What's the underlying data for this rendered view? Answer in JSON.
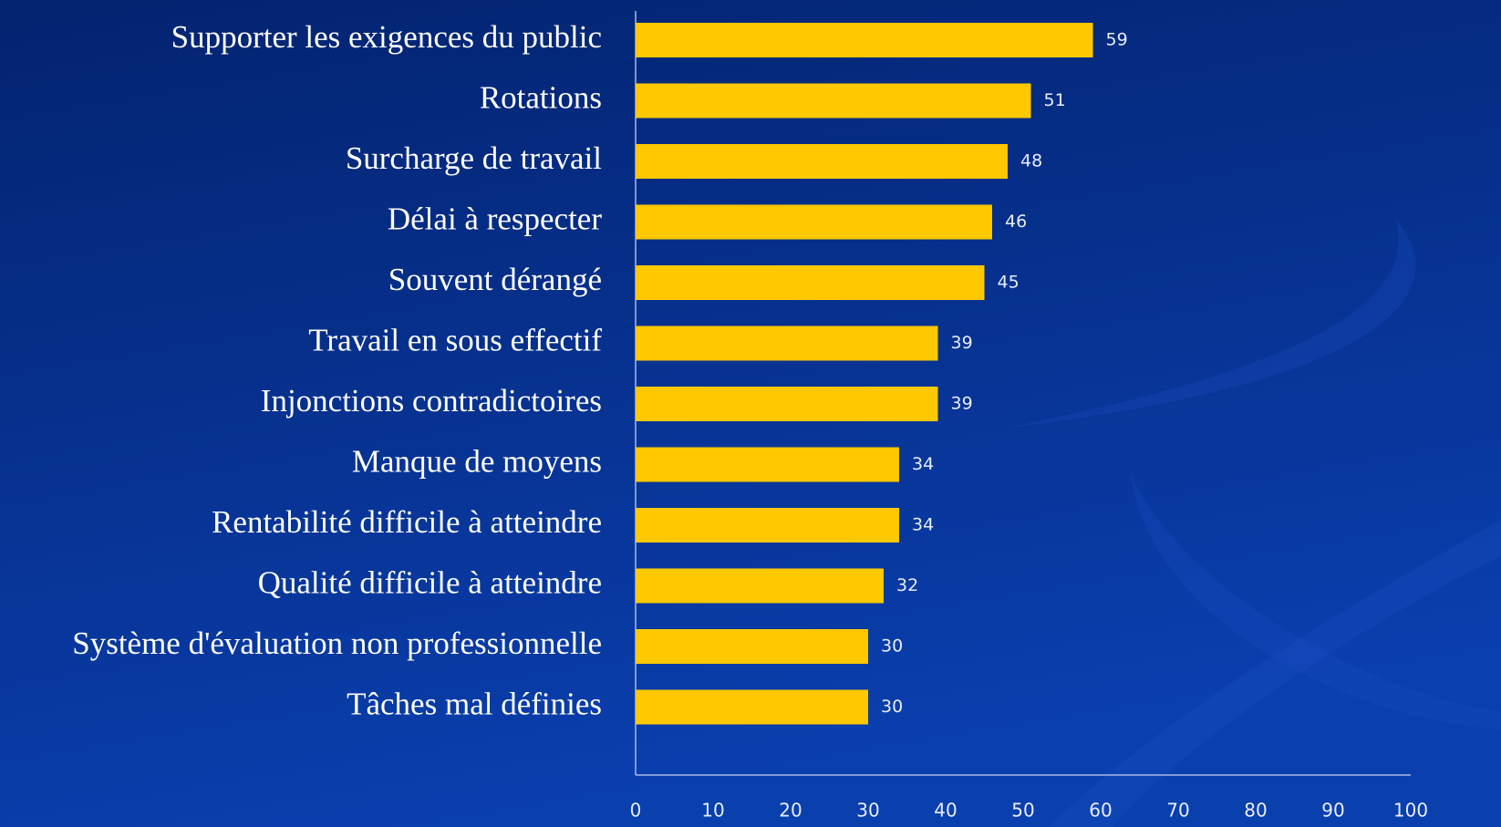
{
  "chart_data": {
    "type": "barh",
    "categories": [
      "Supporter les exigences du public",
      "Rotations",
      "Surcharge de travail",
      "Délai à respecter",
      "Souvent dérangé",
      "Travail en sous effectif",
      "Injonctions contradictoires",
      "Manque de moyens",
      "Rentabilité difficile à atteindre",
      "Qualité difficile à atteindre",
      "Système d'évaluation non professionnelle",
      "Tâches mal définies"
    ],
    "values": [
      59,
      51,
      48,
      46,
      45,
      39,
      39,
      34,
      34,
      32,
      30,
      30
    ],
    "color": "#ffc800",
    "xlim": [
      0,
      100
    ],
    "xticks": [
      0,
      10,
      20,
      30,
      40,
      50,
      60,
      70,
      80,
      90,
      100
    ]
  }
}
